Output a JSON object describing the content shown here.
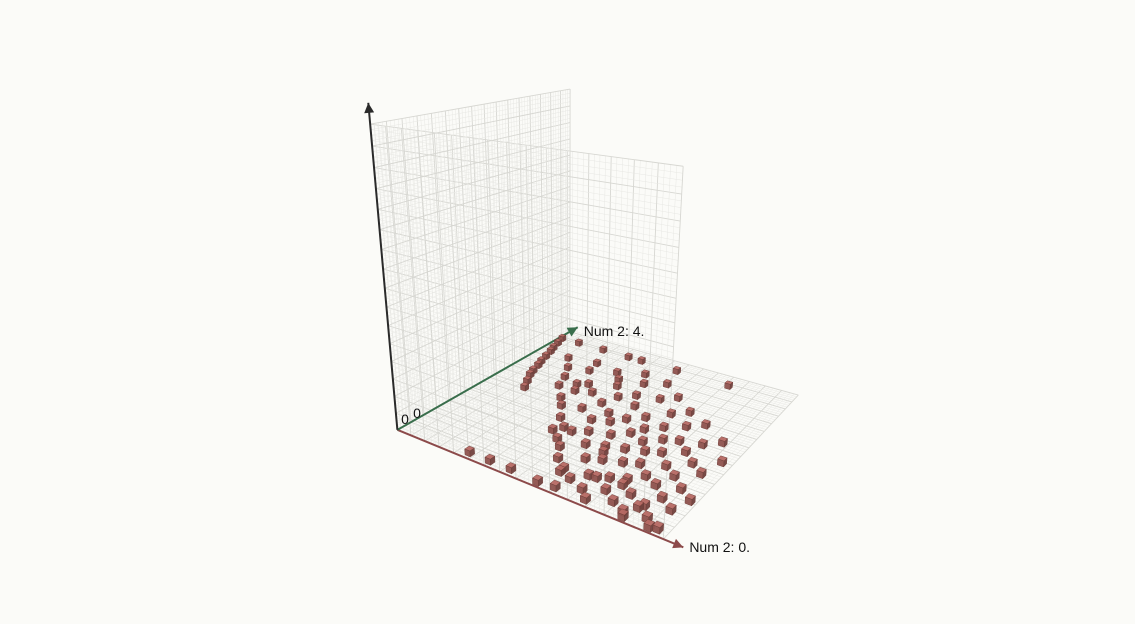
{
  "chart": {
    "type": "scatter3d",
    "background_color": "#fbfbf8",
    "grid": {
      "line_color": "#d7d7d2",
      "line_color_minor": "#e8e8e4",
      "divisions": 16,
      "subdivisions": 4
    },
    "axes": {
      "x": {
        "label": "Num 2: 0.",
        "color": "#8c4a4a",
        "arrow": true,
        "tick0": "0",
        "tick0_near_origin": true
      },
      "y": {
        "label": "Num 2: 4.",
        "color": "#3a6e4c",
        "arrow": true,
        "tick0": "0",
        "tick0_near_origin": true
      },
      "z": {
        "label": "",
        "color": "#2a2a2a",
        "arrow": true
      }
    },
    "axis_label_fontsize": 14,
    "tick_fontsize": 14,
    "marker": {
      "shape": "cube",
      "size": 0.09,
      "fill_color": "#b76a64",
      "edge_color": "#6e3b36",
      "opacity": 0.95
    },
    "extent": {
      "x": [
        0,
        4.2
      ],
      "y": [
        0,
        4.2
      ],
      "z": [
        0,
        4.2
      ]
    },
    "camera": {
      "azimuth_deg": -55,
      "elevation_deg": 22,
      "distance": 11.2,
      "target": [
        1.7,
        1.7,
        1.6
      ]
    },
    "points_xyz": [
      [
        0.05,
        3.9,
        0.0
      ],
      [
        0.1,
        3.7,
        0.0
      ],
      [
        0.15,
        3.5,
        0.0
      ],
      [
        0.2,
        3.35,
        0.0
      ],
      [
        0.25,
        3.15,
        0.0
      ],
      [
        0.3,
        2.95,
        0.0
      ],
      [
        0.35,
        2.8,
        0.0
      ],
      [
        0.4,
        2.6,
        0.0
      ],
      [
        0.45,
        2.45,
        0.0
      ],
      [
        0.55,
        2.25,
        0.0
      ],
      [
        0.65,
        2.05,
        0.0
      ],
      [
        0.4,
        3.9,
        0.0
      ],
      [
        0.9,
        3.9,
        0.0
      ],
      [
        1.4,
        3.9,
        0.0
      ],
      [
        1.65,
        3.9,
        0.0
      ],
      [
        2.3,
        3.9,
        0.0
      ],
      [
        3.2,
        3.9,
        0.0
      ],
      [
        0.6,
        3.3,
        0.0
      ],
      [
        0.8,
        3.0,
        0.0
      ],
      [
        0.95,
        2.7,
        0.0
      ],
      [
        1.05,
        2.4,
        0.0
      ],
      [
        1.1,
        3.4,
        0.0
      ],
      [
        1.15,
        3.1,
        0.0
      ],
      [
        1.25,
        2.6,
        0.0
      ],
      [
        1.3,
        2.1,
        0.0
      ],
      [
        1.35,
        2.4,
        0.0
      ],
      [
        1.4,
        2.7,
        0.0
      ],
      [
        1.45,
        1.9,
        0.0
      ],
      [
        1.55,
        3.3,
        0.0
      ],
      [
        1.6,
        2.5,
        0.0
      ],
      [
        1.65,
        1.6,
        0.0
      ],
      [
        1.7,
        3.1,
        0.0
      ],
      [
        1.75,
        2.0,
        0.0
      ],
      [
        1.8,
        2.9,
        0.0
      ],
      [
        1.85,
        1.4,
        0.0
      ],
      [
        1.9,
        2.3,
        0.0
      ],
      [
        1.95,
        3.5,
        0.0
      ],
      [
        1.95,
        1.1,
        0.0
      ],
      [
        2.0,
        2.6,
        0.0
      ],
      [
        2.05,
        1.8,
        0.0
      ],
      [
        2.1,
        3.2,
        0.0
      ],
      [
        2.1,
        0.95,
        0.0
      ],
      [
        2.15,
        2.1,
        0.0
      ],
      [
        2.2,
        1.5,
        0.0
      ],
      [
        2.2,
        2.8,
        0.0
      ],
      [
        2.25,
        0.7,
        0.0
      ],
      [
        2.3,
        1.9,
        0.0
      ],
      [
        2.35,
        2.5,
        0.0
      ],
      [
        2.35,
        1.2,
        0.0
      ],
      [
        2.4,
        3.4,
        0.0
      ],
      [
        2.45,
        0.55,
        0.0
      ],
      [
        2.45,
        2.1,
        0.0
      ],
      [
        2.5,
        1.6,
        0.0
      ],
      [
        2.55,
        2.9,
        0.0
      ],
      [
        2.55,
        0.9,
        0.0
      ],
      [
        2.6,
        1.3,
        0.0
      ],
      [
        2.65,
        2.3,
        0.0
      ],
      [
        2.65,
        0.4,
        0.0
      ],
      [
        2.7,
        1.8,
        0.0
      ],
      [
        2.75,
        3.1,
        0.0
      ],
      [
        2.75,
        1.0,
        0.0
      ],
      [
        2.8,
        2.0,
        0.0
      ],
      [
        2.8,
        0.6,
        0.0
      ],
      [
        2.85,
        1.4,
        0.0
      ],
      [
        2.9,
        2.6,
        0.0
      ],
      [
        2.9,
        0.3,
        0.0
      ],
      [
        2.95,
        1.7,
        0.0
      ],
      [
        3.0,
        1.1,
        0.0
      ],
      [
        3.0,
        2.2,
        0.0
      ],
      [
        3.05,
        0.7,
        0.0
      ],
      [
        3.1,
        1.5,
        0.0
      ],
      [
        3.1,
        2.8,
        0.0
      ],
      [
        3.15,
        0.45,
        0.0
      ],
      [
        3.15,
        1.9,
        0.0
      ],
      [
        3.2,
        1.2,
        0.0
      ],
      [
        3.25,
        2.4,
        0.0
      ],
      [
        3.25,
        0.8,
        0.0
      ],
      [
        3.3,
        1.6,
        0.0
      ],
      [
        3.35,
        0.3,
        0.0
      ],
      [
        3.35,
        2.0,
        0.0
      ],
      [
        3.4,
        1.0,
        0.0
      ],
      [
        3.45,
        2.6,
        0.0
      ],
      [
        3.45,
        0.55,
        0.0
      ],
      [
        3.5,
        1.35,
        0.0
      ],
      [
        3.55,
        1.8,
        0.0
      ],
      [
        3.55,
        0.2,
        0.0
      ],
      [
        3.6,
        0.9,
        0.0
      ],
      [
        3.65,
        2.1,
        0.0
      ],
      [
        3.7,
        1.2,
        0.0
      ],
      [
        3.7,
        0.45,
        0.0
      ],
      [
        3.75,
        1.6,
        0.0
      ],
      [
        3.8,
        0.7,
        0.0
      ],
      [
        3.85,
        2.3,
        0.0
      ],
      [
        3.85,
        0.25,
        0.0
      ],
      [
        3.9,
        1.0,
        0.0
      ],
      [
        3.95,
        1.45,
        0.0
      ],
      [
        4.0,
        0.55,
        0.0
      ],
      [
        4.05,
        0.15,
        0.0
      ],
      [
        4.05,
        1.85,
        0.0
      ],
      [
        4.1,
        0.85,
        0.0
      ],
      [
        1.2,
        0.15,
        0.0
      ],
      [
        1.55,
        0.15,
        0.0
      ],
      [
        1.9,
        0.15,
        0.0
      ],
      [
        2.35,
        0.12,
        0.0
      ],
      [
        2.6,
        0.15,
        0.0
      ],
      [
        3.05,
        0.15,
        0.0
      ],
      [
        3.6,
        0.12,
        0.0
      ],
      [
        3.95,
        0.12,
        0.0
      ],
      [
        3.7,
        0.3,
        0.06
      ],
      [
        2.5,
        0.4,
        0.05
      ],
      [
        2.05,
        1.3,
        0.05
      ],
      [
        2.95,
        0.55,
        0.05
      ],
      [
        1.8,
        1.2,
        0.04
      ],
      [
        3.3,
        0.6,
        0.05
      ],
      [
        2.7,
        1.1,
        0.05
      ]
    ]
  }
}
